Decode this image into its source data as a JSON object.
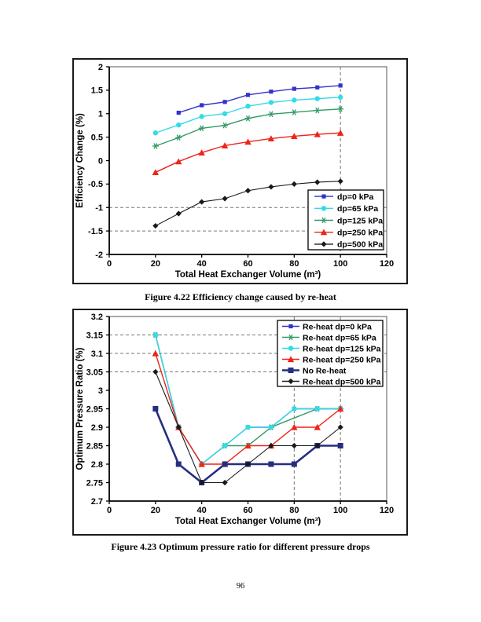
{
  "page": {
    "number": "96"
  },
  "chart_data": [
    {
      "type": "line",
      "caption": "Figure 4.22 Efficiency change caused by re-heat",
      "title": "",
      "xlabel": "Total Heat Exchanger Volume (m³)",
      "ylabel": "Efficiency Change (%)",
      "xlim": [
        0,
        120
      ],
      "ylim": [
        -2,
        2
      ],
      "xticks": [
        0,
        20,
        40,
        60,
        80,
        100,
        120
      ],
      "yticks": [
        2,
        1.5,
        1,
        0.5,
        0,
        -0.5,
        -1,
        -1.5,
        -2
      ],
      "x": [
        20,
        30,
        40,
        50,
        60,
        70,
        80,
        90,
        100
      ],
      "grid": "off",
      "legend_position": "bottom-right",
      "reference_lines": {
        "horizontal_dashed": [
          -1,
          -1.5
        ],
        "vertical_dashed": [
          100
        ]
      },
      "series": [
        {
          "name": "dp=0 kPa",
          "color": "#3333cc",
          "marker": "square",
          "values": [
            null,
            1.02,
            1.18,
            1.25,
            1.4,
            1.47,
            1.53,
            1.56,
            1.6
          ]
        },
        {
          "name": "dp=65 kPa",
          "color": "#33dbe6",
          "marker": "circle",
          "values": [
            0.59,
            0.76,
            0.94,
            1.0,
            1.16,
            1.24,
            1.29,
            1.32,
            1.35
          ]
        },
        {
          "name": "dp=125 kPa",
          "color": "#339966",
          "marker": "asterisk",
          "values": [
            0.31,
            0.49,
            0.69,
            0.75,
            0.9,
            0.99,
            1.03,
            1.07,
            1.1
          ]
        },
        {
          "name": "dp=250 kPa",
          "color": "#ee2418",
          "marker": "triangle",
          "values": [
            -0.25,
            -0.02,
            0.17,
            0.32,
            0.4,
            0.47,
            0.52,
            0.56,
            0.59
          ]
        },
        {
          "name": "dp=500 kPa",
          "color": "#1a1a1a",
          "marker": "diamond",
          "values": [
            -1.39,
            -1.13,
            -0.88,
            -0.81,
            -0.64,
            -0.56,
            -0.5,
            -0.46,
            -0.44
          ]
        }
      ]
    },
    {
      "type": "line",
      "caption": "Figure 4.23 Optimum pressure ratio for different pressure drops",
      "title": "",
      "xlabel": "Total Heat Exchanger Volume (m³)",
      "ylabel": "Optimum Pressure Ratio (%)",
      "xlim": [
        0,
        120
      ],
      "ylim": [
        2.7,
        3.2
      ],
      "xticks": [
        0,
        20,
        40,
        60,
        80,
        100,
        120
      ],
      "yticks": [
        3.2,
        3.15,
        3.1,
        3.05,
        3,
        2.95,
        2.9,
        2.85,
        2.8,
        2.75,
        2.7
      ],
      "x": [
        20,
        30,
        40,
        50,
        60,
        70,
        80,
        90,
        100
      ],
      "grid": "off",
      "legend_position": "top-right",
      "reference_lines": {
        "horizontal_dashed": [
          3.15,
          3.1,
          3.05
        ],
        "vertical_dashed": [
          80,
          100
        ]
      },
      "series": [
        {
          "name": "Re-heat dp=0 kPa",
          "color": "#3333cc",
          "marker": "square",
          "values": [
            3.15,
            2.9,
            2.8,
            2.85,
            2.9,
            2.9,
            2.95,
            2.95,
            2.95
          ]
        },
        {
          "name": "Re-heat dp=65 kPa",
          "color": "#339966",
          "marker": "asterisk",
          "values": [
            3.15,
            2.9,
            2.8,
            2.85,
            2.85,
            2.9,
            null,
            2.95,
            2.95
          ]
        },
        {
          "name": "Re-heat dp=125 kPa",
          "color": "#33dbe6",
          "marker": "circle",
          "values": [
            3.15,
            2.9,
            2.8,
            2.85,
            2.9,
            2.9,
            2.95,
            2.95,
            2.95
          ]
        },
        {
          "name": "Re-heat dp=250 kPa",
          "color": "#ee2418",
          "marker": "triangle",
          "values": [
            3.1,
            2.9,
            2.8,
            2.8,
            2.85,
            2.85,
            2.9,
            2.9,
            2.95
          ]
        },
        {
          "name": "No Re-heat",
          "color": "#252e80",
          "marker": "square",
          "line_width": 2.6,
          "values": [
            2.95,
            2.8,
            2.75,
            2.8,
            2.8,
            2.8,
            2.8,
            2.85,
            2.85
          ]
        },
        {
          "name": "Re-heat dp=500 kPa",
          "color": "#1a1a1a",
          "marker": "diamond",
          "values": [
            3.05,
            2.9,
            2.75,
            2.75,
            2.8,
            2.85,
            2.85,
            2.85,
            2.9
          ]
        }
      ]
    }
  ]
}
